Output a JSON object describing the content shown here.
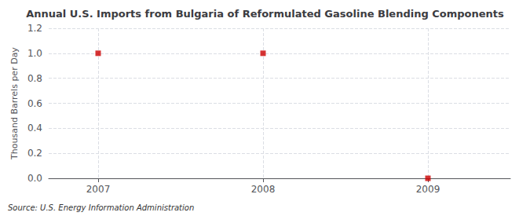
{
  "chart_data": {
    "type": "scatter",
    "title": "Annual U.S. Imports from Bulgaria of Reformulated Gasoline Blending Components",
    "ylabel": "Thousand Barrels per Day",
    "source": "Source: U.S. Energy Information Administration",
    "x": [
      2007,
      2008,
      2009
    ],
    "values": [
      1.0,
      1.0,
      0.0
    ],
    "color": "#CC0000",
    "marker": "square",
    "xlim": [
      2006.7,
      2009.5
    ],
    "xticks": [
      2007,
      2008,
      2009
    ],
    "ylim": [
      0.0,
      1.2
    ],
    "yticks": [
      {
        "value": 0.0,
        "label": "0.0"
      },
      0.2,
      0.4,
      0.6,
      0.8,
      {
        "value": 1.0,
        "label": "1.0"
      },
      1.2
    ],
    "grid": true
  }
}
